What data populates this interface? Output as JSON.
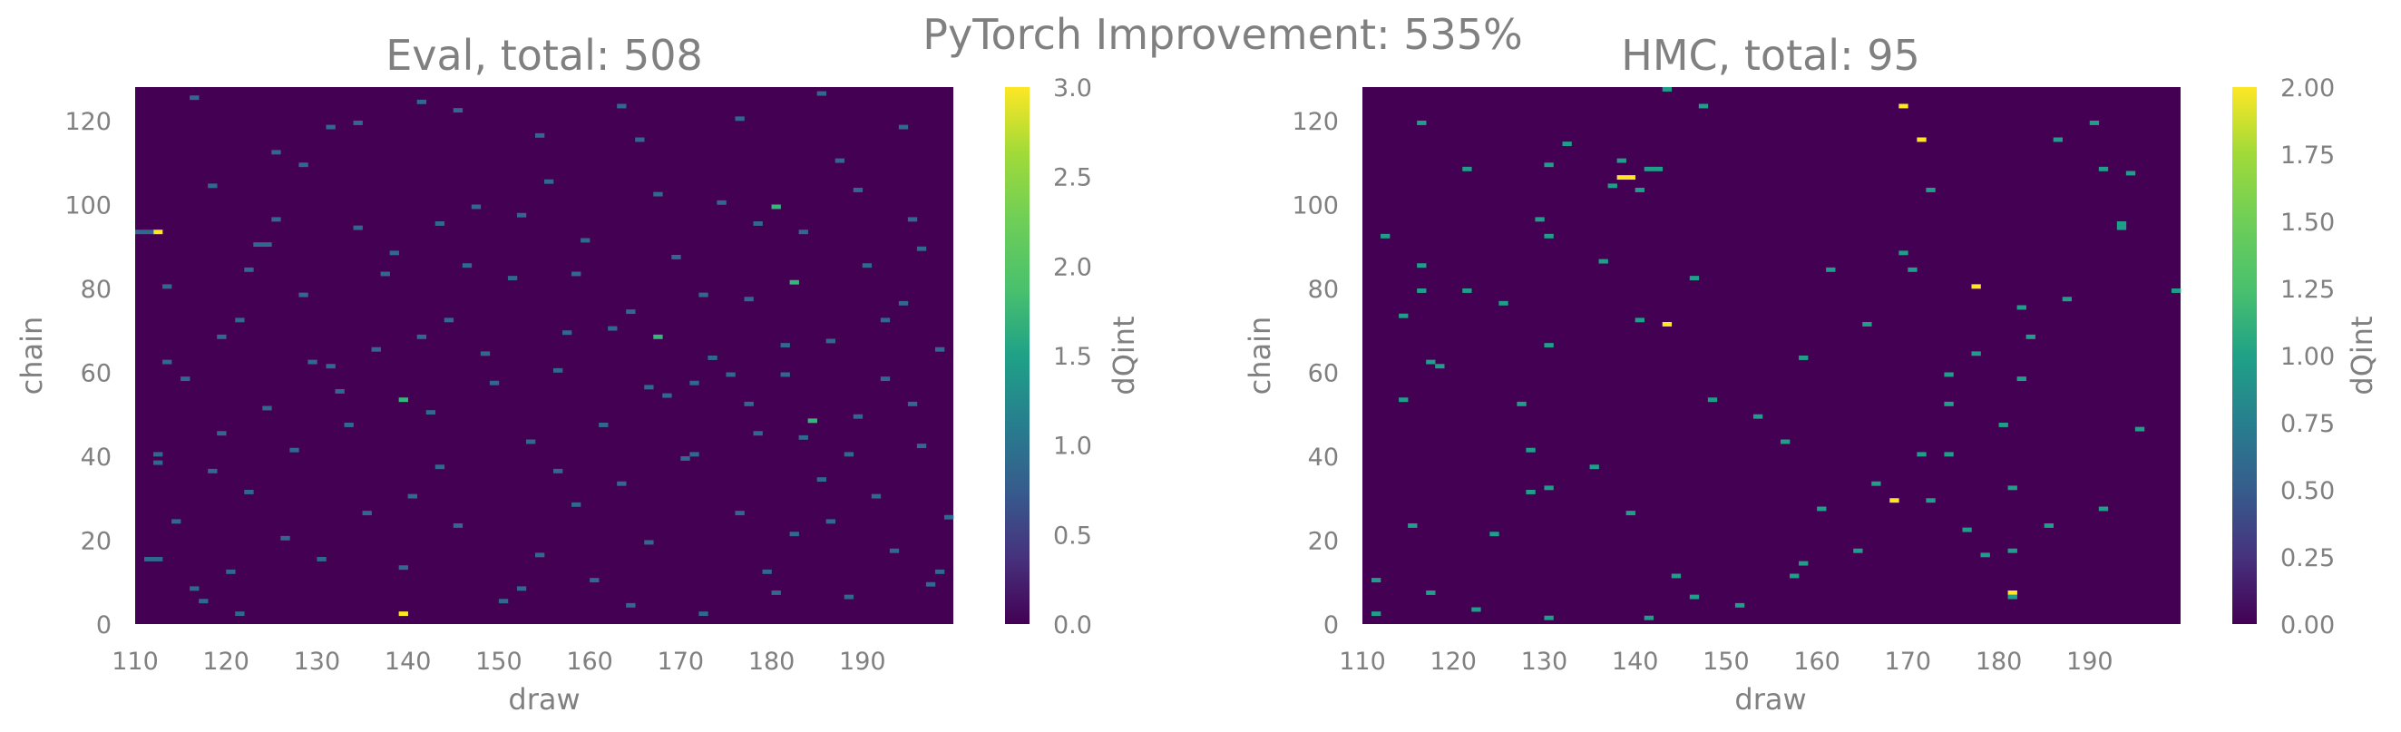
{
  "suptitle": "PyTorch Improvement: 535%",
  "colors": {
    "text": "#808080",
    "background": "#440154",
    "colormap": "viridis"
  },
  "chart_data": [
    {
      "type": "heatmap",
      "title": "Eval, total: 508",
      "xlabel": "draw",
      "ylabel": "chain",
      "colorbar_label": "dQint",
      "xlim": [
        110,
        200
      ],
      "ylim": [
        0,
        128
      ],
      "clim": [
        0,
        3
      ],
      "xticks": [
        "110",
        "120",
        "130",
        "140",
        "150",
        "160",
        "170",
        "180",
        "190"
      ],
      "yticks": [
        "0",
        "20",
        "40",
        "60",
        "80",
        "100",
        "120"
      ],
      "cticks": [
        "0.0",
        "0.5",
        "1.0",
        "1.5",
        "2.0",
        "2.5",
        "3.0"
      ],
      "grid": false,
      "cells": [
        [
          112,
          93,
          3
        ],
        [
          139,
          2,
          3
        ],
        [
          182,
          81,
          2
        ],
        [
          184,
          48,
          2
        ],
        [
          167,
          68,
          2
        ],
        [
          180,
          99,
          2
        ],
        [
          139,
          53,
          2
        ],
        [
          110,
          93,
          1
        ],
        [
          111,
          93,
          1
        ],
        [
          111,
          15,
          1
        ],
        [
          112,
          15,
          1
        ],
        [
          112,
          38,
          1
        ],
        [
          112,
          40,
          1
        ],
        [
          113,
          62,
          1
        ],
        [
          114,
          24,
          1
        ],
        [
          116,
          8,
          1
        ],
        [
          117,
          5,
          1
        ],
        [
          118,
          104,
          1
        ],
        [
          119,
          45,
          1
        ],
        [
          120,
          12,
          1
        ],
        [
          121,
          2,
          1
        ],
        [
          122,
          31,
          1
        ],
        [
          123,
          90,
          1
        ],
        [
          124,
          90,
          1
        ],
        [
          125,
          96,
          1
        ],
        [
          127,
          41,
          1
        ],
        [
          128,
          78,
          1
        ],
        [
          129,
          62,
          1
        ],
        [
          130,
          15,
          1
        ],
        [
          131,
          118,
          1
        ],
        [
          132,
          55,
          1
        ],
        [
          134,
          94,
          1
        ],
        [
          136,
          65,
          1
        ],
        [
          138,
          88,
          1
        ],
        [
          140,
          30,
          1
        ],
        [
          141,
          124,
          1
        ],
        [
          142,
          50,
          1
        ],
        [
          144,
          72,
          1
        ],
        [
          145,
          23,
          1
        ],
        [
          147,
          99,
          1
        ],
        [
          148,
          64,
          1
        ],
        [
          150,
          5,
          1
        ],
        [
          151,
          82,
          1
        ],
        [
          152,
          8,
          1
        ],
        [
          153,
          43,
          1
        ],
        [
          155,
          105,
          1
        ],
        [
          156,
          60,
          1
        ],
        [
          158,
          28,
          1
        ],
        [
          159,
          91,
          1
        ],
        [
          160,
          10,
          1
        ],
        [
          162,
          70,
          1
        ],
        [
          163,
          33,
          1
        ],
        [
          164,
          74,
          1
        ],
        [
          165,
          115,
          1
        ],
        [
          166,
          19,
          1
        ],
        [
          168,
          54,
          1
        ],
        [
          169,
          87,
          1
        ],
        [
          171,
          40,
          1
        ],
        [
          172,
          2,
          1
        ],
        [
          173,
          63,
          1
        ],
        [
          174,
          100,
          1
        ],
        [
          176,
          26,
          1
        ],
        [
          177,
          77,
          1
        ],
        [
          178,
          45,
          1
        ],
        [
          179,
          12,
          1
        ],
        [
          181,
          59,
          1
        ],
        [
          182,
          21,
          1
        ],
        [
          183,
          93,
          1
        ],
        [
          185,
          34,
          1
        ],
        [
          186,
          67,
          1
        ],
        [
          187,
          110,
          1
        ],
        [
          188,
          6,
          1
        ],
        [
          189,
          49,
          1
        ],
        [
          190,
          85,
          1
        ],
        [
          191,
          30,
          1
        ],
        [
          192,
          58,
          1
        ],
        [
          193,
          17,
          1
        ],
        [
          194,
          76,
          1
        ],
        [
          195,
          96,
          1
        ],
        [
          196,
          42,
          1
        ],
        [
          197,
          9,
          1
        ],
        [
          198,
          65,
          1
        ],
        [
          199,
          25,
          1
        ],
        [
          113,
          80,
          1
        ],
        [
          115,
          58,
          1
        ],
        [
          118,
          36,
          1
        ],
        [
          121,
          72,
          1
        ],
        [
          124,
          51,
          1
        ],
        [
          126,
          20,
          1
        ],
        [
          128,
          109,
          1
        ],
        [
          133,
          47,
          1
        ],
        [
          135,
          26,
          1
        ],
        [
          137,
          83,
          1
        ],
        [
          139,
          13,
          1
        ],
        [
          143,
          37,
          1
        ],
        [
          146,
          85,
          1
        ],
        [
          149,
          57,
          1
        ],
        [
          152,
          97,
          1
        ],
        [
          154,
          16,
          1
        ],
        [
          157,
          69,
          1
        ],
        [
          161,
          47,
          1
        ],
        [
          164,
          4,
          1
        ],
        [
          167,
          102,
          1
        ],
        [
          170,
          39,
          1
        ],
        [
          172,
          78,
          1
        ],
        [
          175,
          59,
          1
        ],
        [
          178,
          95,
          1
        ],
        [
          180,
          7,
          1
        ],
        [
          183,
          44,
          1
        ],
        [
          186,
          24,
          1
        ],
        [
          189,
          103,
          1
        ],
        [
          192,
          72,
          1
        ],
        [
          195,
          52,
          1
        ],
        [
          198,
          12,
          1
        ],
        [
          116,
          125,
          1
        ],
        [
          125,
          112,
          1
        ],
        [
          134,
          119,
          1
        ],
        [
          145,
          122,
          1
        ],
        [
          154,
          116,
          1
        ],
        [
          163,
          123,
          1
        ],
        [
          176,
          120,
          1
        ],
        [
          185,
          126,
          1
        ],
        [
          194,
          118,
          1
        ],
        [
          119,
          68,
          1
        ],
        [
          131,
          61,
          1
        ],
        [
          143,
          95,
          1
        ],
        [
          158,
          83,
          1
        ],
        [
          171,
          57,
          1
        ],
        [
          181,
          66,
          1
        ],
        [
          196,
          89,
          1
        ],
        [
          122,
          84,
          1
        ],
        [
          141,
          68,
          1
        ],
        [
          156,
          36,
          1
        ],
        [
          166,
          56,
          1
        ],
        [
          177,
          52,
          1
        ],
        [
          188,
          40,
          1
        ]
      ]
    },
    {
      "type": "heatmap",
      "title": "HMC, total: 95",
      "xlabel": "draw",
      "ylabel": "chain",
      "colorbar_label": "dQint",
      "xlim": [
        110,
        200
      ],
      "ylim": [
        0,
        128
      ],
      "clim": [
        0,
        2
      ],
      "xticks": [
        "110",
        "120",
        "130",
        "140",
        "150",
        "160",
        "170",
        "180",
        "190"
      ],
      "yticks": [
        "0",
        "20",
        "40",
        "60",
        "80",
        "100",
        "120"
      ],
      "cticks": [
        "0.00",
        "0.25",
        "0.50",
        "0.75",
        "1.00",
        "1.25",
        "1.50",
        "1.75",
        "2.00"
      ],
      "grid": false,
      "cells": [
        [
          138,
          106,
          2
        ],
        [
          139,
          106,
          2
        ],
        [
          143,
          71,
          2
        ],
        [
          168,
          29,
          2
        ],
        [
          169,
          123,
          2
        ],
        [
          171,
          115,
          2
        ],
        [
          177,
          80,
          2
        ],
        [
          181,
          7,
          2
        ],
        [
          111,
          10,
          1
        ],
        [
          111,
          2,
          1
        ],
        [
          112,
          92,
          1
        ],
        [
          114,
          53,
          1
        ],
        [
          114,
          73,
          1
        ],
        [
          115,
          23,
          1
        ],
        [
          116,
          79,
          1
        ],
        [
          116,
          119,
          1
        ],
        [
          116,
          85,
          1
        ],
        [
          117,
          62,
          1
        ],
        [
          117,
          7,
          1
        ],
        [
          118,
          61,
          1
        ],
        [
          121,
          108,
          1
        ],
        [
          121,
          79,
          1
        ],
        [
          122,
          3,
          1
        ],
        [
          124,
          21,
          1
        ],
        [
          128,
          41,
          1
        ],
        [
          128,
          31,
          1
        ],
        [
          129,
          96,
          1
        ],
        [
          130,
          109,
          1
        ],
        [
          130,
          92,
          1
        ],
        [
          130,
          66,
          1
        ],
        [
          130,
          32,
          1
        ],
        [
          130,
          1,
          1
        ],
        [
          132,
          114,
          1
        ],
        [
          136,
          86,
          1
        ],
        [
          137,
          104,
          1
        ],
        [
          138,
          110,
          1
        ],
        [
          139,
          26,
          1
        ],
        [
          140,
          103,
          1
        ],
        [
          140,
          72,
          1
        ],
        [
          141,
          1,
          1
        ],
        [
          141,
          108,
          1
        ],
        [
          142,
          108,
          1
        ],
        [
          143,
          127,
          1
        ],
        [
          144,
          11,
          1
        ],
        [
          146,
          82,
          1
        ],
        [
          146,
          6,
          1
        ],
        [
          147,
          123,
          1
        ],
        [
          148,
          53,
          1
        ],
        [
          151,
          4,
          1
        ],
        [
          156,
          43,
          1
        ],
        [
          157,
          11,
          1
        ],
        [
          158,
          63,
          1
        ],
        [
          158,
          14,
          1
        ],
        [
          160,
          27,
          1
        ],
        [
          161,
          84,
          1
        ],
        [
          166,
          33,
          1
        ],
        [
          169,
          88,
          1
        ],
        [
          170,
          84,
          1
        ],
        [
          171,
          40,
          1
        ],
        [
          172,
          103,
          1
        ],
        [
          172,
          29,
          1
        ],
        [
          174,
          59,
          1
        ],
        [
          174,
          52,
          1
        ],
        [
          174,
          40,
          1
        ],
        [
          176,
          22,
          1
        ],
        [
          177,
          64,
          1
        ],
        [
          178,
          16,
          1
        ],
        [
          180,
          47,
          1
        ],
        [
          181,
          32,
          1
        ],
        [
          181,
          17,
          1
        ],
        [
          181,
          6,
          1
        ],
        [
          182,
          75,
          1
        ],
        [
          182,
          58,
          1
        ],
        [
          183,
          68,
          1
        ],
        [
          186,
          115,
          1
        ],
        [
          187,
          77,
          1
        ],
        [
          190,
          119,
          1
        ],
        [
          191,
          108,
          1
        ],
        [
          191,
          27,
          1
        ],
        [
          193,
          95,
          1
        ],
        [
          193,
          94,
          1
        ],
        [
          194,
          107,
          1
        ],
        [
          199,
          79,
          1
        ],
        [
          153,
          49,
          1
        ],
        [
          164,
          17,
          1
        ],
        [
          127,
          52,
          1
        ],
        [
          125,
          76,
          1
        ],
        [
          135,
          37,
          1
        ],
        [
          165,
          71,
          1
        ],
        [
          185,
          23,
          1
        ],
        [
          195,
          46,
          1
        ]
      ]
    }
  ]
}
